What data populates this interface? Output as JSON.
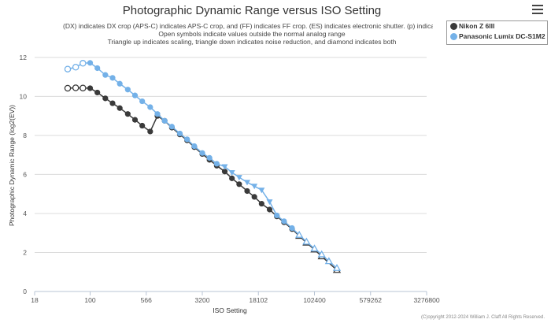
{
  "title": "Photographic Dynamic Range versus ISO Setting",
  "subtitle_lines": [
    "(DX) indicates DX crop (APS-C) indicates APS-C crop, and (FF) indicates FF crop. (ES) indicates electronic shutter. (p) indicated pre",
    "Open symbols indicate values outside the normal analog range",
    "Triangle up indicates scaling, triangle down indicates noise reduction, and diamond indicates both"
  ],
  "footer": "(C)opyright 2012-2024 William J. Claff All Rights Reserved.",
  "menu_icon": "hamburger-menu-icon",
  "legend": [
    {
      "name": "Nikon Z 6III",
      "color": "#3a3a3a"
    },
    {
      "name": "Panasonic Lumix DC-S1M2",
      "color": "#74b1e8"
    }
  ],
  "chart_data": {
    "type": "line",
    "title": "Photographic Dynamic Range versus ISO Setting",
    "xlabel": "ISO Setting",
    "ylabel": "Photographic Dynamic Range (log2(EV))",
    "x_scale": "log2",
    "x_ticks": [
      "18",
      "100",
      "566",
      "3200",
      "18102",
      "102400",
      "579262",
      "3276800"
    ],
    "x_tick_values": [
      18,
      100,
      566,
      3200,
      18102,
      102400,
      579262,
      3276800
    ],
    "xlim": [
      18,
      3276800
    ],
    "ylim": [
      0,
      12.6
    ],
    "y_ticks": [
      0,
      2,
      4,
      6,
      8,
      10,
      12
    ],
    "grid": true,
    "legend_position": "top-right",
    "series": [
      {
        "name": "Nikon Z 6III",
        "color": "#3a3a3a",
        "points": [
          {
            "iso": 50,
            "dr": 10.42,
            "marker": "open-circle"
          },
          {
            "iso": 64,
            "dr": 10.44,
            "marker": "open-circle"
          },
          {
            "iso": 80,
            "dr": 10.43,
            "marker": "open-circle"
          },
          {
            "iso": 100,
            "dr": 10.42,
            "marker": "circle"
          },
          {
            "iso": 125,
            "dr": 10.2,
            "marker": "circle"
          },
          {
            "iso": 160,
            "dr": 9.9,
            "marker": "circle"
          },
          {
            "iso": 200,
            "dr": 9.65,
            "marker": "circle"
          },
          {
            "iso": 250,
            "dr": 9.4,
            "marker": "circle"
          },
          {
            "iso": 320,
            "dr": 9.1,
            "marker": "circle"
          },
          {
            "iso": 400,
            "dr": 8.8,
            "marker": "circle"
          },
          {
            "iso": 500,
            "dr": 8.5,
            "marker": "circle"
          },
          {
            "iso": 640,
            "dr": 8.2,
            "marker": "circle"
          },
          {
            "iso": 800,
            "dr": 9.0,
            "marker": "circle"
          },
          {
            "iso": 1000,
            "dr": 8.75,
            "marker": "circle"
          },
          {
            "iso": 1250,
            "dr": 8.4,
            "marker": "circle"
          },
          {
            "iso": 1600,
            "dr": 8.05,
            "marker": "circle"
          },
          {
            "iso": 2000,
            "dr": 7.75,
            "marker": "circle"
          },
          {
            "iso": 2500,
            "dr": 7.4,
            "marker": "circle"
          },
          {
            "iso": 3200,
            "dr": 7.05,
            "marker": "circle"
          },
          {
            "iso": 4000,
            "dr": 6.75,
            "marker": "circle"
          },
          {
            "iso": 5000,
            "dr": 6.45,
            "marker": "circle"
          },
          {
            "iso": 6400,
            "dr": 6.15,
            "marker": "circle"
          },
          {
            "iso": 8000,
            "dr": 5.8,
            "marker": "circle"
          },
          {
            "iso": 10000,
            "dr": 5.5,
            "marker": "circle"
          },
          {
            "iso": 12800,
            "dr": 5.15,
            "marker": "circle"
          },
          {
            "iso": 16000,
            "dr": 4.85,
            "marker": "circle"
          },
          {
            "iso": 20000,
            "dr": 4.5,
            "marker": "circle"
          },
          {
            "iso": 25600,
            "dr": 4.2,
            "marker": "circle"
          },
          {
            "iso": 32000,
            "dr": 3.85,
            "marker": "circle"
          },
          {
            "iso": 40000,
            "dr": 3.55,
            "marker": "circle"
          },
          {
            "iso": 51200,
            "dr": 3.2,
            "marker": "circle"
          },
          {
            "iso": 64000,
            "dr": 2.85,
            "marker": "open-triangle-up"
          },
          {
            "iso": 80000,
            "dr": 2.5,
            "marker": "open-triangle-up"
          },
          {
            "iso": 102400,
            "dr": 2.15,
            "marker": "open-triangle-up"
          },
          {
            "iso": 128000,
            "dr": 1.8,
            "marker": "open-triangle-up"
          },
          {
            "iso": 204800,
            "dr": 1.1,
            "marker": "open-triangle-up"
          }
        ]
      },
      {
        "name": "Panasonic Lumix DC-S1M2",
        "color": "#74b1e8",
        "points": [
          {
            "iso": 50,
            "dr": 11.4,
            "marker": "open-circle"
          },
          {
            "iso": 64,
            "dr": 11.5,
            "marker": "open-circle"
          },
          {
            "iso": 80,
            "dr": 11.7,
            "marker": "open-circle"
          },
          {
            "iso": 100,
            "dr": 11.72,
            "marker": "circle"
          },
          {
            "iso": 125,
            "dr": 11.45,
            "marker": "circle"
          },
          {
            "iso": 160,
            "dr": 11.1,
            "marker": "circle"
          },
          {
            "iso": 200,
            "dr": 10.95,
            "marker": "circle"
          },
          {
            "iso": 250,
            "dr": 10.65,
            "marker": "circle"
          },
          {
            "iso": 320,
            "dr": 10.35,
            "marker": "circle"
          },
          {
            "iso": 400,
            "dr": 10.05,
            "marker": "circle"
          },
          {
            "iso": 500,
            "dr": 9.75,
            "marker": "circle"
          },
          {
            "iso": 640,
            "dr": 9.45,
            "marker": "circle"
          },
          {
            "iso": 800,
            "dr": 9.1,
            "marker": "circle"
          },
          {
            "iso": 1000,
            "dr": 8.75,
            "marker": "circle"
          },
          {
            "iso": 1250,
            "dr": 8.45,
            "marker": "circle"
          },
          {
            "iso": 1600,
            "dr": 8.1,
            "marker": "circle"
          },
          {
            "iso": 2000,
            "dr": 7.8,
            "marker": "circle"
          },
          {
            "iso": 2500,
            "dr": 7.45,
            "marker": "circle"
          },
          {
            "iso": 3200,
            "dr": 7.1,
            "marker": "circle"
          },
          {
            "iso": 4000,
            "dr": 6.85,
            "marker": "circle"
          },
          {
            "iso": 5000,
            "dr": 6.55,
            "marker": "circle"
          },
          {
            "iso": 6400,
            "dr": 6.4,
            "marker": "triangle-down"
          },
          {
            "iso": 8000,
            "dr": 6.1,
            "marker": "triangle-down"
          },
          {
            "iso": 10000,
            "dr": 5.85,
            "marker": "triangle-down"
          },
          {
            "iso": 12800,
            "dr": 5.6,
            "marker": "triangle-down"
          },
          {
            "iso": 16000,
            "dr": 5.4,
            "marker": "triangle-down"
          },
          {
            "iso": 20000,
            "dr": 5.2,
            "marker": "triangle-down"
          },
          {
            "iso": 25600,
            "dr": 4.6,
            "marker": "triangle-down"
          },
          {
            "iso": 32000,
            "dr": 3.9,
            "marker": "circle"
          },
          {
            "iso": 40000,
            "dr": 3.6,
            "marker": "circle"
          },
          {
            "iso": 51200,
            "dr": 3.25,
            "marker": "circle"
          },
          {
            "iso": 64000,
            "dr": 2.9,
            "marker": "open-triangle-up"
          },
          {
            "iso": 80000,
            "dr": 2.55,
            "marker": "open-triangle-up"
          },
          {
            "iso": 102400,
            "dr": 2.2,
            "marker": "open-triangle-up"
          },
          {
            "iso": 128000,
            "dr": 1.9,
            "marker": "open-triangle-up"
          },
          {
            "iso": 160000,
            "dr": 1.55,
            "marker": "open-triangle-up"
          },
          {
            "iso": 204800,
            "dr": 1.2,
            "marker": "open-triangle-up"
          }
        ]
      }
    ]
  }
}
